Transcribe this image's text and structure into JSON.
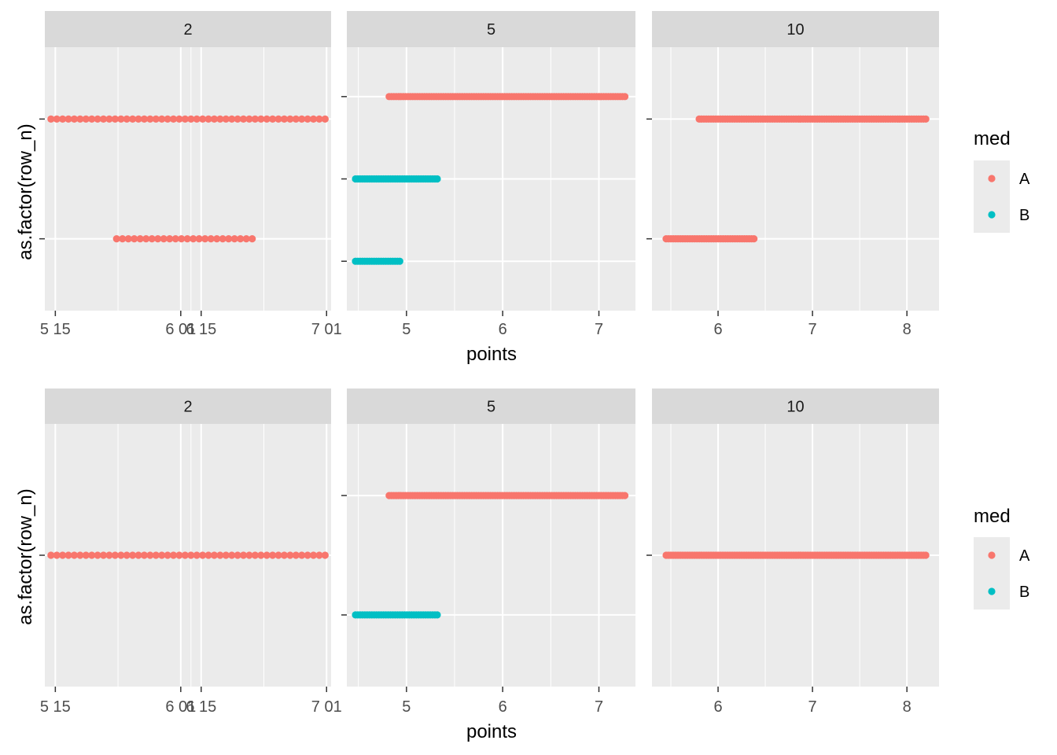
{
  "colors": {
    "A": "#F8766D",
    "B": "#00BFC4",
    "panel_bg": "#EBEBEB",
    "strip_bg": "#D9D9D9",
    "grid": "#FFFFFF"
  },
  "legend": {
    "title": "med",
    "items": [
      {
        "label": "A",
        "color": "#F8766D"
      },
      {
        "label": "B",
        "color": "#00BFC4"
      }
    ]
  },
  "chart_data": [
    {
      "type": "scatter",
      "ylabel": "as.factor(row_n)",
      "xlabel": "points",
      "panels": [
        {
          "strip": "2",
          "x_ticks": [
            "5 15",
            "6 01",
            "6 15",
            "7 01"
          ],
          "tick_values": [
            5.15,
            6.01,
            6.15,
            7.01
          ],
          "y_levels": 2,
          "series": [
            {
              "group": "A",
              "level": 2,
              "x_from": 5.12,
              "x_to": 7.0
            },
            {
              "group": "A",
              "level": 1,
              "x_from": 5.57,
              "x_to": 6.5
            }
          ]
        },
        {
          "strip": "5",
          "x_ticks": [
            "5",
            "6",
            "7"
          ],
          "tick_values": [
            5,
            6,
            7
          ],
          "y_levels": 3,
          "series": [
            {
              "group": "A",
              "level": 3,
              "x_from": 4.82,
              "x_to": 7.27
            },
            {
              "group": "B",
              "level": 2,
              "x_from": 4.47,
              "x_to": 5.32
            },
            {
              "group": "B",
              "level": 1,
              "x_from": 4.47,
              "x_to": 4.93
            }
          ]
        },
        {
          "strip": "10",
          "x_ticks": [
            "6",
            "7",
            "8"
          ],
          "tick_values": [
            6,
            7,
            8
          ],
          "y_levels": 2,
          "series": [
            {
              "group": "A",
              "level": 2,
              "x_from": 5.8,
              "x_to": 8.2
            },
            {
              "group": "A",
              "level": 1,
              "x_from": 5.45,
              "x_to": 6.38
            }
          ]
        }
      ]
    },
    {
      "type": "scatter",
      "ylabel": "as.factor(row_n)",
      "xlabel": "points",
      "panels": [
        {
          "strip": "2",
          "x_ticks": [
            "5 15",
            "6 01",
            "6 15",
            "7 01"
          ],
          "tick_values": [
            5.15,
            6.01,
            6.15,
            7.01
          ],
          "y_levels": 1,
          "series": [
            {
              "group": "A",
              "level": 1,
              "x_from": 5.12,
              "x_to": 7.0
            }
          ]
        },
        {
          "strip": "5",
          "x_ticks": [
            "5",
            "6",
            "7"
          ],
          "tick_values": [
            5,
            6,
            7
          ],
          "y_levels": 2,
          "series": [
            {
              "group": "A",
              "level": 2,
              "x_from": 4.82,
              "x_to": 7.27
            },
            {
              "group": "B",
              "level": 1,
              "x_from": 4.47,
              "x_to": 5.32
            }
          ]
        },
        {
          "strip": "10",
          "x_ticks": [
            "6",
            "7",
            "8"
          ],
          "tick_values": [
            6,
            7,
            8
          ],
          "y_levels": 1,
          "series": [
            {
              "group": "A",
              "level": 1,
              "x_from": 5.45,
              "x_to": 8.2
            }
          ]
        }
      ]
    }
  ]
}
